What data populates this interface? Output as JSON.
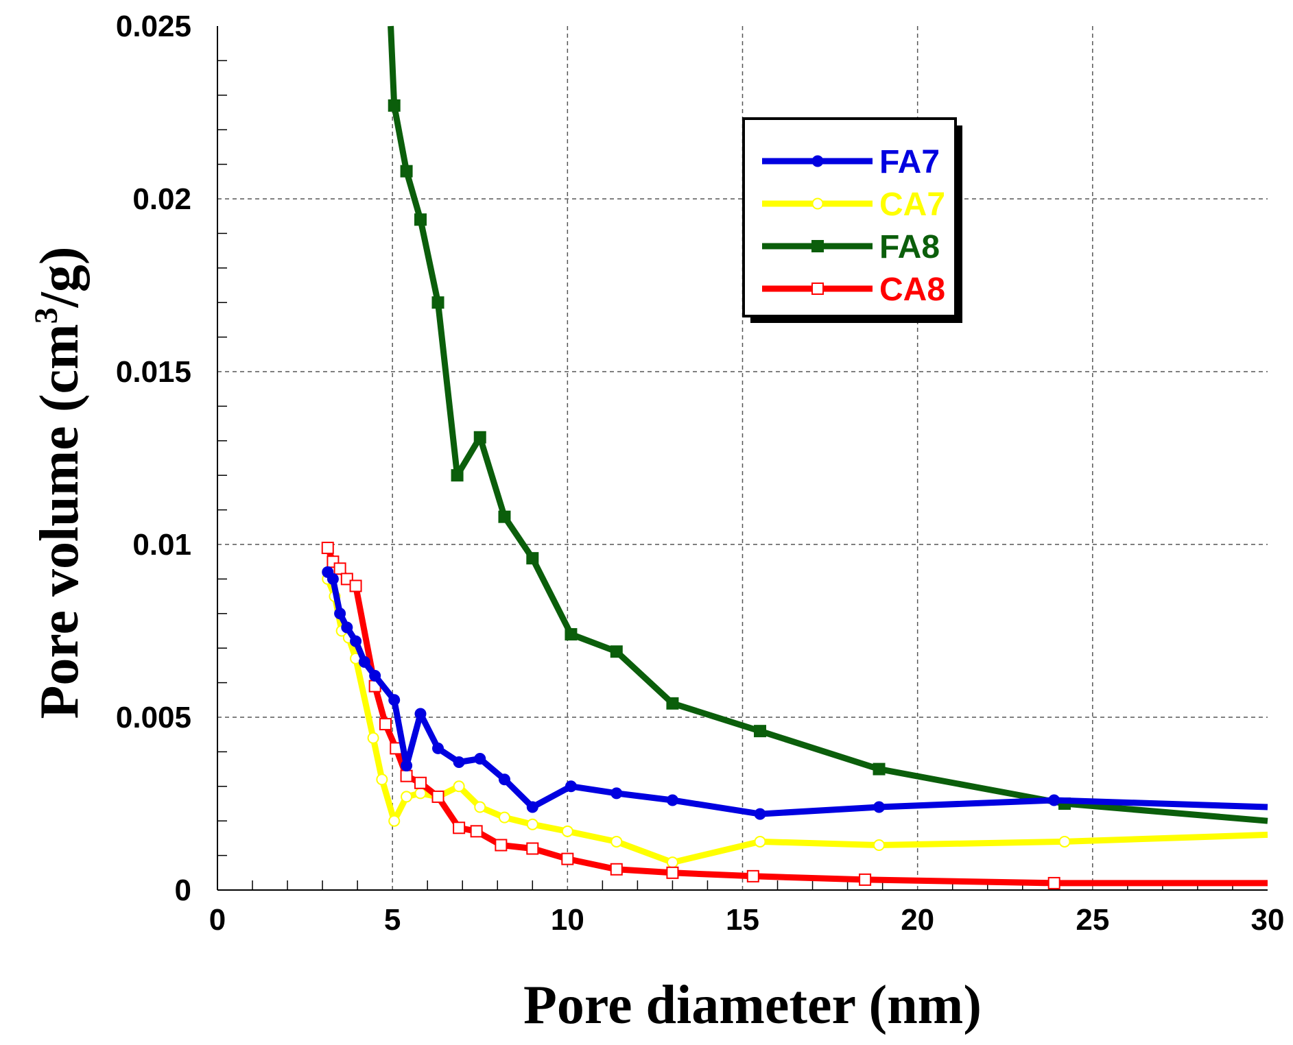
{
  "chart_data": {
    "type": "line",
    "title": "",
    "xlabel": "Pore diameter (nm)",
    "ylabel": {
      "prefix": "Pore volume (cm",
      "superscript": "3",
      "suffix": "/g)"
    },
    "xlim": [
      0,
      30
    ],
    "ylim": [
      0,
      0.025
    ],
    "x_ticks": [
      "0",
      "5",
      "10",
      "15",
      "20",
      "25",
      "30"
    ],
    "y_ticks": [
      "0",
      "0.005",
      "0.01",
      "0.015",
      "0.02",
      "0.025"
    ],
    "grid": true,
    "legend_position": "top-right",
    "series": [
      {
        "name": "FA7",
        "color": "#0000e0",
        "marker": "filled-circle",
        "x": [
          3.15,
          3.3,
          3.5,
          3.7,
          3.95,
          4.2,
          4.5,
          5.05,
          5.4,
          5.8,
          6.3,
          6.9,
          7.5,
          8.2,
          9.0,
          10.1,
          11.4,
          13.0,
          15.5,
          18.9,
          23.9,
          30
        ],
        "y": [
          0.0092,
          0.009,
          0.008,
          0.0076,
          0.0072,
          0.0066,
          0.0062,
          0.0055,
          0.0036,
          0.0051,
          0.0041,
          0.0037,
          0.0038,
          0.0032,
          0.0024,
          0.003,
          0.0028,
          0.0026,
          0.0022,
          0.0024,
          0.0026,
          0.0024
        ]
      },
      {
        "name": "CA7",
        "color": "#ffff00",
        "marker": "open-circle",
        "x": [
          3.15,
          3.35,
          3.55,
          3.75,
          3.95,
          4.45,
          4.7,
          5.05,
          5.4,
          5.8,
          6.3,
          6.9,
          7.5,
          8.2,
          9.0,
          10.0,
          11.4,
          13.0,
          15.5,
          18.9,
          24.2,
          30
        ],
        "y": [
          0.009,
          0.0085,
          0.0075,
          0.0073,
          0.0067,
          0.0044,
          0.0032,
          0.002,
          0.0027,
          0.0028,
          0.0027,
          0.003,
          0.0024,
          0.0021,
          0.0019,
          0.0017,
          0.0014,
          0.0008,
          0.0014,
          0.0013,
          0.0014,
          0.0016
        ]
      },
      {
        "name": "FA8",
        "color": "#0b5e0b",
        "marker": "filled-square",
        "x": [
          4.95,
          5.05,
          5.4,
          5.8,
          6.3,
          6.85,
          7.5,
          8.2,
          9.0,
          10.1,
          11.4,
          13.0,
          15.5,
          18.9,
          24.2,
          30
        ],
        "y": [
          0.025,
          0.0227,
          0.0208,
          0.0194,
          0.017,
          0.012,
          0.0131,
          0.0108,
          0.0096,
          0.0074,
          0.0069,
          0.0054,
          0.0046,
          0.0035,
          0.0025,
          0.002
        ]
      },
      {
        "name": "CA8",
        "color": "#ff0000",
        "marker": "open-square",
        "x": [
          3.15,
          3.3,
          3.5,
          3.7,
          3.95,
          4.5,
          4.8,
          5.1,
          5.4,
          5.8,
          6.3,
          6.9,
          7.4,
          8.1,
          9.0,
          10.0,
          11.4,
          13.0,
          15.3,
          18.5,
          23.9,
          30
        ],
        "y": [
          0.0099,
          0.0095,
          0.0093,
          0.009,
          0.0088,
          0.0059,
          0.0048,
          0.0041,
          0.0033,
          0.0031,
          0.0027,
          0.0018,
          0.0017,
          0.0013,
          0.0012,
          0.0009,
          0.0006,
          0.0005,
          0.0004,
          0.0003,
          0.0002,
          0.0002
        ]
      }
    ]
  }
}
